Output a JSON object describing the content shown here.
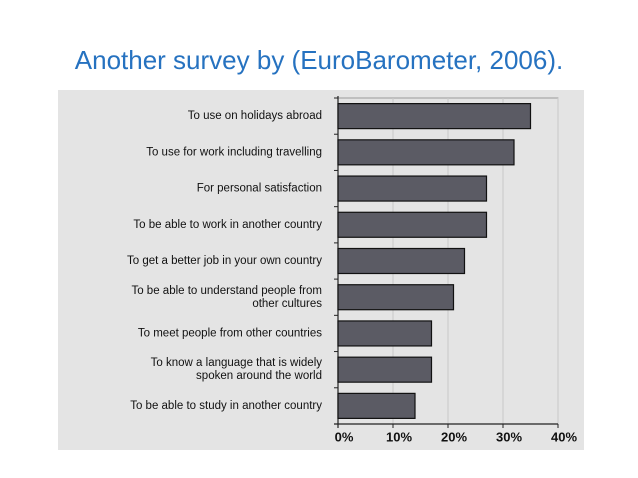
{
  "chart_data": {
    "type": "hbar",
    "title": "Another survey by (EuroBarometer, 2006).",
    "categories": [
      [
        "To use on holidays abroad"
      ],
      [
        "To use for work including travelling"
      ],
      [
        "For personal satisfaction"
      ],
      [
        "To be able to work in another country"
      ],
      [
        "To get a better job in your own country"
      ],
      [
        "To be able to understand people from",
        "other cultures"
      ],
      [
        "To meet people from other countries"
      ],
      [
        "To know a language that is widely",
        "spoken around the world"
      ],
      [
        "To be able to study in another country"
      ]
    ],
    "values": [
      35,
      32,
      27,
      27,
      23,
      21,
      17,
      17,
      14
    ],
    "color": "#5b5b64",
    "xlim": [
      0,
      40
    ],
    "xticks": [
      {
        "value": 0,
        "label": "0%"
      },
      {
        "value": 10,
        "label": "10%"
      },
      {
        "value": 20,
        "label": "20%"
      },
      {
        "value": 30,
        "label": "30%"
      },
      {
        "value": 40,
        "label": "40%"
      }
    ],
    "grid": true
  }
}
